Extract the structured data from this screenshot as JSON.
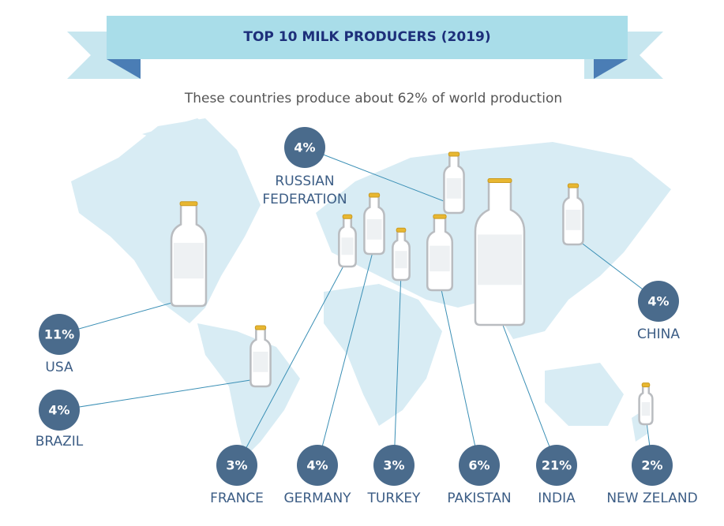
{
  "chart_data": {
    "type": "pictogram",
    "title": "TOP 10 MILK PRODUCERS (2019)",
    "subtitle": "These countries produce about 62% of world production",
    "categories": [
      "USA",
      "BRAZIL",
      "FRANCE",
      "GERMANY",
      "TURKEY",
      "PAKISTAN",
      "INDIA",
      "NEW ZELAND",
      "CHINA",
      "RUSSIAN FEDERATION"
    ],
    "values": [
      11,
      4,
      3,
      4,
      3,
      6,
      21,
      2,
      4,
      4
    ],
    "value_labels": [
      "11%",
      "4%",
      "3%",
      "4%",
      "3%",
      "6%",
      "21%",
      "2%",
      "4%",
      "4%"
    ],
    "color": "#4a6b8c"
  }
}
